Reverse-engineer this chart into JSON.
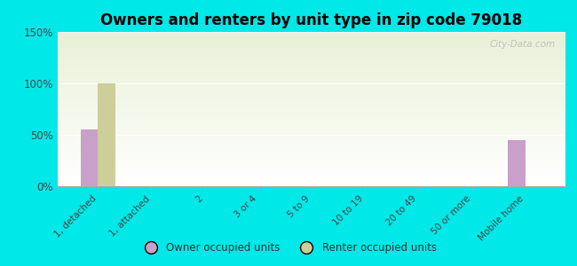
{
  "title": "Owners and renters by unit type in zip code 79018",
  "categories": [
    "1, detached",
    "1, attached",
    "2",
    "3 or 4",
    "5 to 9",
    "10 to 19",
    "20 to 49",
    "50 or more",
    "Mobile home"
  ],
  "owner_values": [
    55,
    0,
    0,
    0,
    0,
    0,
    0,
    0,
    45
  ],
  "renter_values": [
    100,
    0,
    0,
    0,
    0,
    0,
    0,
    0,
    0
  ],
  "owner_color": "#c9a0c9",
  "renter_color": "#cccf99",
  "ylim": [
    0,
    150
  ],
  "yticks": [
    0,
    50,
    100,
    150
  ],
  "ytick_labels": [
    "0%",
    "50%",
    "100%",
    "150%"
  ],
  "background_color": "#00e8e8",
  "title_fontsize": 12,
  "bar_width": 0.32,
  "watermark": "City-Data.com",
  "legend_owner": "Owner occupied units",
  "legend_renter": "Renter occupied units"
}
